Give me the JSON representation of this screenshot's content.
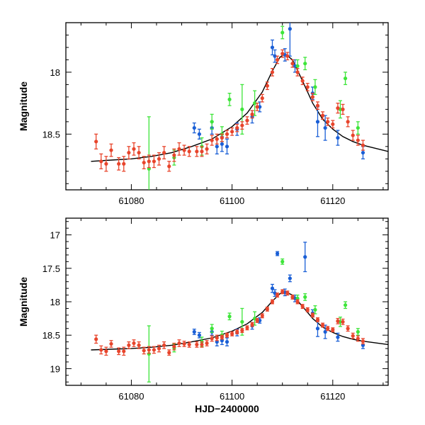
{
  "chart_data": [
    {
      "type": "scatter",
      "panel": "top",
      "title": "",
      "xlabel": "",
      "ylabel": "Magnitude",
      "xlim": [
        61067,
        61131
      ],
      "ylim": [
        18.95,
        17.6
      ],
      "y_inverted": true,
      "xticks": [
        61080,
        61100,
        61120
      ],
      "xtick_labels": [
        "61080",
        "61100",
        "61120"
      ],
      "yticks": [
        18,
        18.5
      ],
      "ytick_labels": [
        "18",
        "18.5"
      ],
      "model": {
        "x": [
          61072,
          61076,
          61080,
          61084,
          61088,
          61092,
          61096,
          61100,
          61103,
          61106,
          61108,
          61109.5,
          61110.5,
          61112,
          61114,
          61116,
          61118,
          61120,
          61122,
          61124,
          61126,
          61128,
          61131
        ],
        "y": [
          18.72,
          18.71,
          18.7,
          18.68,
          18.65,
          18.6,
          18.54,
          18.44,
          18.33,
          18.16,
          17.99,
          17.88,
          17.85,
          17.9,
          18.07,
          18.25,
          18.38,
          18.46,
          18.52,
          18.56,
          18.59,
          18.61,
          18.64
        ]
      },
      "series": [
        {
          "name": "red",
          "color": "#e8452c",
          "x": [
            61073,
            61074,
            61075,
            61076,
            61077.5,
            61078.5,
            61079.5,
            61080.5,
            61081.5,
            61082.5,
            61083.5,
            61084.5,
            61085.5,
            61086.5,
            61087.5,
            61088.5,
            61089.5,
            61090.5,
            61091.5,
            61093,
            61094,
            61095,
            61096,
            61097,
            61098,
            61099,
            61100,
            61101,
            61102,
            61103,
            61104,
            61105,
            61106,
            61107,
            61108,
            61109,
            61110,
            61111,
            61112,
            61113,
            61114,
            61115,
            61116,
            61117,
            61118,
            61119,
            61120,
            61121,
            61122,
            61123,
            61124,
            61125,
            61126
          ],
          "y": [
            18.56,
            18.72,
            18.74,
            18.63,
            18.74,
            18.74,
            18.65,
            18.62,
            18.65,
            18.73,
            18.72,
            18.72,
            18.7,
            18.65,
            18.76,
            18.67,
            18.62,
            18.63,
            18.64,
            18.64,
            18.64,
            18.62,
            18.55,
            18.54,
            18.53,
            18.5,
            18.48,
            18.45,
            18.43,
            18.39,
            18.34,
            18.28,
            18.21,
            18.11,
            18.0,
            17.9,
            17.85,
            17.87,
            17.93,
            18.0,
            18.07,
            18.12,
            18.2,
            18.27,
            18.35,
            18.4,
            18.42,
            18.29,
            18.3,
            18.4,
            18.51,
            18.55,
            18.59
          ],
          "err": [
            0.06,
            0.06,
            0.06,
            0.05,
            0.05,
            0.06,
            0.05,
            0.05,
            0.05,
            0.05,
            0.05,
            0.05,
            0.05,
            0.05,
            0.04,
            0.05,
            0.05,
            0.04,
            0.04,
            0.04,
            0.04,
            0.04,
            0.04,
            0.04,
            0.03,
            0.03,
            0.03,
            0.03,
            0.03,
            0.03,
            0.03,
            0.03,
            0.03,
            0.03,
            0.03,
            0.03,
            0.03,
            0.03,
            0.03,
            0.03,
            0.03,
            0.03,
            0.03,
            0.03,
            0.03,
            0.03,
            0.03,
            0.04,
            0.04,
            0.04,
            0.04,
            0.04,
            0.04
          ]
        },
        {
          "name": "blue",
          "color": "#1a5fd6",
          "x": [
            61092.5,
            61093.5,
            61096,
            61097,
            61098,
            61099,
            61101,
            61104,
            61105.5,
            61108,
            61108.5,
            61110.5,
            61111.5,
            61112.5,
            61116,
            61117,
            61118.5,
            61121,
            61126
          ],
          "y": [
            18.45,
            18.5,
            18.45,
            18.6,
            18.58,
            18.6,
            18.46,
            18.36,
            18.28,
            17.8,
            17.87,
            17.86,
            17.65,
            17.95,
            18.17,
            18.4,
            18.45,
            18.53,
            18.65
          ],
          "err": [
            0.04,
            0.04,
            0.05,
            0.06,
            0.06,
            0.06,
            0.05,
            0.05,
            0.04,
            0.06,
            0.05,
            0.05,
            0.22,
            0.05,
            0.05,
            0.12,
            0.1,
            0.06,
            0.05
          ]
        },
        {
          "name": "green",
          "color": "#3ee53a",
          "x": [
            61083.5,
            61088.5,
            61094,
            61096,
            61098,
            61099.5,
            61102,
            61104.5,
            61110,
            61113,
            61114.5,
            61116.5,
            61121.5,
            61122.5,
            61125
          ],
          "y": [
            18.78,
            18.69,
            18.6,
            18.4,
            18.5,
            18.22,
            18.3,
            18.25,
            17.68,
            17.95,
            17.93,
            18.12,
            18.3,
            18.05,
            18.45
          ],
          "err": [
            0.42,
            0.06,
            0.07,
            0.06,
            0.06,
            0.05,
            0.2,
            0.1,
            0.05,
            0.05,
            0.05,
            0.06,
            0.07,
            0.05,
            0.05
          ]
        }
      ]
    },
    {
      "type": "scatter",
      "panel": "bottom",
      "title": "",
      "xlabel": "HJD−2400000",
      "ylabel": "Magnitude",
      "xlim": [
        61067,
        61131
      ],
      "ylim": [
        19.25,
        16.75
      ],
      "y_inverted": true,
      "xticks": [
        61080,
        61100,
        61120
      ],
      "xtick_labels": [
        "61080",
        "61100",
        "61120"
      ],
      "yticks": [
        17,
        17.5,
        18,
        18.5,
        19
      ],
      "ytick_labels": [
        "17",
        "17.5",
        "18",
        "18.5",
        "19"
      ],
      "model": {
        "x": [
          61072,
          61076,
          61080,
          61084,
          61088,
          61092,
          61096,
          61100,
          61103,
          61106,
          61108,
          61109.5,
          61110.5,
          61112,
          61114,
          61116,
          61118,
          61120,
          61122,
          61124,
          61126,
          61128,
          61131
        ],
        "y": [
          18.72,
          18.71,
          18.7,
          18.68,
          18.65,
          18.6,
          18.54,
          18.44,
          18.33,
          18.16,
          17.99,
          17.88,
          17.85,
          17.9,
          18.07,
          18.25,
          18.38,
          18.46,
          18.52,
          18.56,
          18.59,
          18.61,
          18.64
        ]
      },
      "series": [
        {
          "name": "red",
          "color": "#e8452c",
          "x": [
            61073,
            61074,
            61075,
            61076,
            61077.5,
            61078.5,
            61079.5,
            61080.5,
            61081.5,
            61082.5,
            61083.5,
            61084.5,
            61085.5,
            61086.5,
            61087.5,
            61088.5,
            61089.5,
            61090.5,
            61091.5,
            61093,
            61094,
            61095,
            61096,
            61097,
            61098,
            61099,
            61100,
            61101,
            61102,
            61103,
            61104,
            61105,
            61106,
            61107,
            61108,
            61109,
            61110,
            61111,
            61112,
            61113,
            61114,
            61115,
            61116,
            61117,
            61118,
            61119,
            61120,
            61121,
            61122,
            61123,
            61124,
            61125,
            61126
          ],
          "y": [
            18.56,
            18.72,
            18.74,
            18.63,
            18.74,
            18.74,
            18.65,
            18.62,
            18.65,
            18.73,
            18.72,
            18.72,
            18.7,
            18.65,
            18.76,
            18.67,
            18.62,
            18.63,
            18.64,
            18.64,
            18.64,
            18.62,
            18.55,
            18.54,
            18.53,
            18.5,
            18.48,
            18.45,
            18.43,
            18.39,
            18.34,
            18.28,
            18.21,
            18.11,
            18.0,
            17.9,
            17.85,
            17.87,
            17.93,
            18.0,
            18.07,
            18.12,
            18.2,
            18.27,
            18.35,
            18.4,
            18.42,
            18.29,
            18.3,
            18.4,
            18.51,
            18.55,
            18.59
          ],
          "err": [
            0.06,
            0.06,
            0.06,
            0.05,
            0.05,
            0.06,
            0.05,
            0.05,
            0.05,
            0.05,
            0.05,
            0.05,
            0.05,
            0.05,
            0.04,
            0.05,
            0.05,
            0.04,
            0.04,
            0.04,
            0.04,
            0.04,
            0.04,
            0.04,
            0.03,
            0.03,
            0.03,
            0.03,
            0.03,
            0.03,
            0.03,
            0.03,
            0.03,
            0.03,
            0.03,
            0.03,
            0.03,
            0.03,
            0.03,
            0.03,
            0.03,
            0.03,
            0.03,
            0.03,
            0.03,
            0.03,
            0.03,
            0.04,
            0.04,
            0.04,
            0.04,
            0.04,
            0.04
          ]
        },
        {
          "name": "blue",
          "color": "#1a5fd6",
          "x": [
            61092.5,
            61093.5,
            61096,
            61097,
            61098,
            61099,
            61101,
            61104,
            61105.5,
            61108,
            61108.5,
            61109,
            61110.5,
            61111.5,
            61112.5,
            61114.5,
            61116,
            61117,
            61118.5,
            61121,
            61126
          ],
          "y": [
            18.45,
            18.5,
            18.45,
            18.6,
            18.58,
            18.6,
            18.46,
            18.36,
            18.28,
            17.8,
            17.87,
            17.28,
            17.86,
            17.65,
            17.95,
            17.33,
            18.17,
            18.4,
            18.45,
            18.53,
            18.65
          ],
          "err": [
            0.04,
            0.04,
            0.05,
            0.06,
            0.06,
            0.06,
            0.05,
            0.05,
            0.04,
            0.06,
            0.05,
            0.03,
            0.05,
            0.05,
            0.05,
            0.22,
            0.05,
            0.12,
            0.1,
            0.06,
            0.05
          ]
        },
        {
          "name": "green",
          "color": "#3ee53a",
          "x": [
            61083.5,
            61088.5,
            61094,
            61096,
            61098,
            61099.5,
            61102,
            61104.5,
            61110,
            61113,
            61114.5,
            61116.5,
            61121.5,
            61122.5,
            61125
          ],
          "y": [
            18.78,
            18.69,
            18.6,
            18.4,
            18.5,
            18.22,
            18.3,
            18.25,
            17.4,
            17.95,
            17.93,
            18.12,
            18.3,
            18.05,
            18.45
          ],
          "err": [
            0.42,
            0.06,
            0.07,
            0.06,
            0.06,
            0.05,
            0.2,
            0.1,
            0.04,
            0.05,
            0.05,
            0.06,
            0.07,
            0.05,
            0.05
          ]
        }
      ]
    }
  ]
}
